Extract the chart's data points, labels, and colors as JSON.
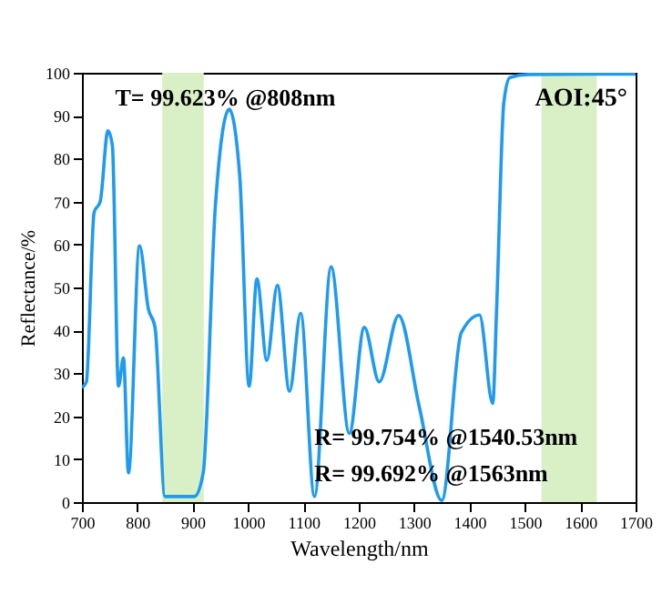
{
  "chart_data": {
    "type": "line",
    "xlabel": "Wavelength/nm",
    "ylabel": "Reflectance/%",
    "xlim": [
      700,
      1700
    ],
    "xticks": [
      700,
      800,
      900,
      1000,
      1100,
      1200,
      1300,
      1400,
      1500,
      1600,
      1700
    ],
    "ylim": [
      0,
      100
    ],
    "yticks": [
      0,
      10,
      20,
      30,
      40,
      50,
      60,
      70,
      80,
      90,
      100
    ],
    "x": [
      700,
      708,
      722,
      733,
      747,
      755,
      766,
      775,
      784,
      804,
      820,
      832,
      850,
      903,
      919,
      941,
      966,
      985,
      1002,
      1016,
      1034,
      1053,
      1075,
      1095,
      1120,
      1150,
      1183,
      1210,
      1237,
      1272,
      1309,
      1350,
      1385,
      1418,
      1442,
      1449,
      1462,
      1473,
      1506,
      1700
    ],
    "series": [
      {
        "color": "#1e9bf0",
        "values": [
          26.7,
          28,
          67.5,
          70,
          86.5,
          83,
          27,
          33.6,
          6.8,
          59.7,
          45,
          40.7,
          1.3,
          1.3,
          6.8,
          69,
          91.5,
          76,
          27,
          52,
          33,
          50.5,
          25.8,
          44,
          1.3,
          54.8,
          16,
          40.7,
          28,
          43.5,
          22.4,
          0.4,
          39.4,
          43.6,
          23,
          45,
          93,
          98.9,
          99.6,
          99.7
        ]
      }
    ],
    "bands": [
      {
        "axis": "x",
        "from": 845,
        "to": 920,
        "color": "#d9efc5"
      },
      {
        "axis": "x",
        "from": 1530,
        "to": 1630,
        "color": "#d9efc5"
      }
    ],
    "annotations": [
      "T= 99.623%  @808nm",
      "AOI:45°",
      "R= 99.754%  @1540.53nm",
      "R= 99.692%  @1563nm"
    ],
    "grid": false
  }
}
